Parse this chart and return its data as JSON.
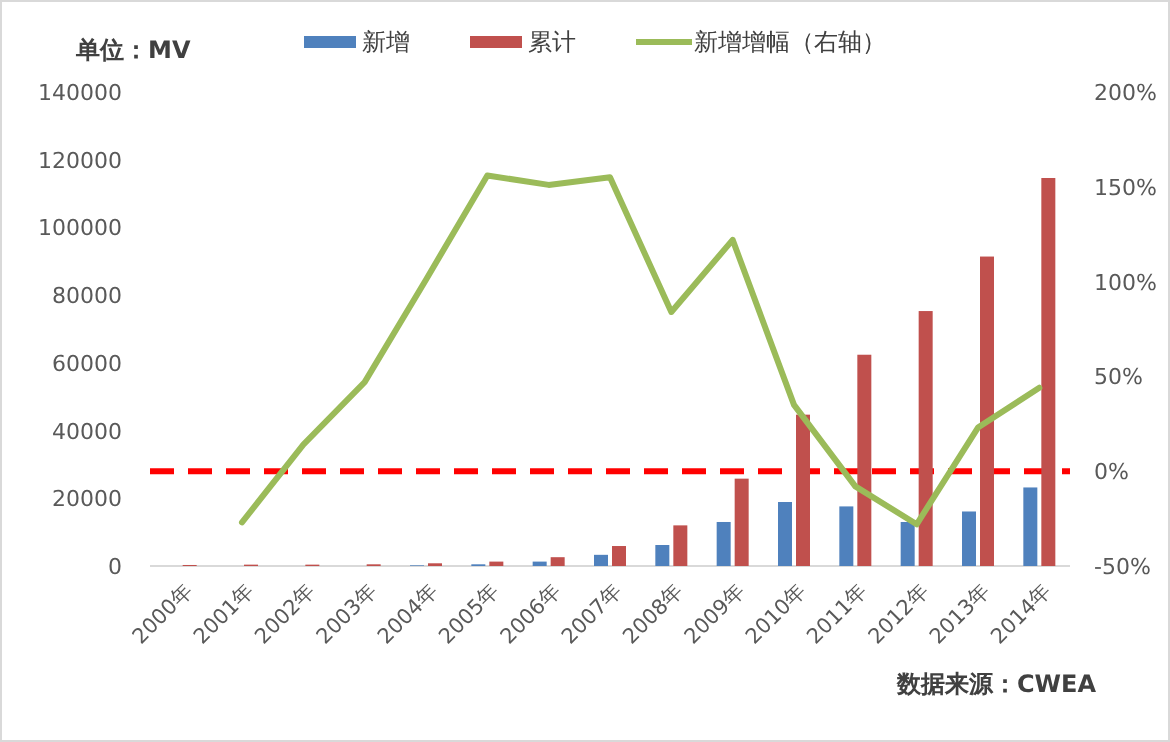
{
  "chart_data": {
    "type": "bar",
    "ylabel": "单位：MV",
    "categories": [
      "2000年",
      "2001年",
      "2002年",
      "2003年",
      "2004年",
      "2005年",
      "2006年",
      "2007年",
      "2008年",
      "2009年",
      "2010年",
      "2011年",
      "2012年",
      "2013年",
      "2014年"
    ],
    "series": [
      {
        "name": "新增",
        "color": "#4f81bd",
        "values": [
          0,
          0,
          0,
          0,
          200,
          500,
          1300,
          3300,
          6200,
          13000,
          18900,
          17600,
          13000,
          16100,
          23200
        ]
      },
      {
        "name": "累计",
        "color": "#c0504d",
        "values": [
          300,
          400,
          400,
          500,
          800,
          1300,
          2600,
          5900,
          12000,
          25800,
          44700,
          62400,
          75300,
          91400,
          114600
        ]
      },
      {
        "name": "新增增幅（右轴）",
        "color": "#9bbb59",
        "type": "line",
        "axis": "y2",
        "values": [
          null,
          -27,
          14,
          47,
          101,
          156,
          151,
          155,
          84,
          122,
          35,
          -8,
          -28,
          23,
          44
        ]
      }
    ],
    "ylim": [
      0,
      140000
    ],
    "yticks": [
      0,
      20000,
      40000,
      60000,
      80000,
      100000,
      120000,
      140000
    ],
    "y2lim": [
      -50,
      200
    ],
    "y2ticks": [
      {
        "value": -50,
        "label": "-50%"
      },
      {
        "value": 0,
        "label": "0%"
      },
      {
        "value": 50,
        "label": "50%"
      },
      {
        "value": 100,
        "label": "100%"
      },
      {
        "value": 150,
        "label": "150%"
      },
      {
        "value": 200,
        "label": "200%"
      }
    ],
    "ref_lines": [
      {
        "axis": "y2",
        "value": 0,
        "color": "#ff0000",
        "line_style": "dashed"
      }
    ],
    "legend": "top",
    "grid": false,
    "annotations": [
      "数据来源：CWEA"
    ]
  }
}
